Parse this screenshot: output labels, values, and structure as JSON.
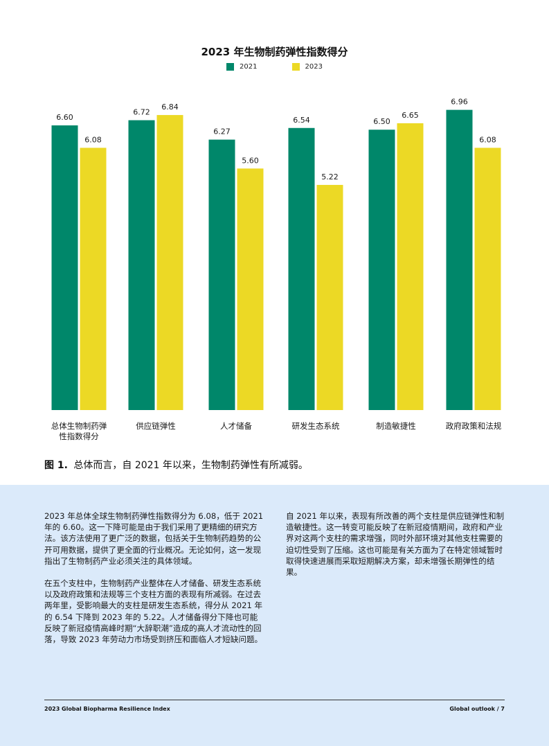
{
  "chart_data": {
    "type": "bar",
    "title": "2023 年生物制药弹性指数得分",
    "categories": [
      "总体生物制药弹性指数得分",
      "供应链弹性",
      "人才储备",
      "研发生态系统",
      "制造敏捷性",
      "政府政策和法规"
    ],
    "series": [
      {
        "name": "2021",
        "color": "#00876a",
        "values": [
          6.6,
          6.72,
          6.27,
          6.54,
          6.5,
          6.96
        ]
      },
      {
        "name": "2023",
        "color": "#ecd925",
        "values": [
          6.08,
          6.84,
          5.6,
          5.22,
          6.65,
          6.08
        ]
      }
    ],
    "ylim": [
      0,
      7.05
    ],
    "grid": false,
    "legend": "top-center",
    "xlabel": "",
    "ylabel": ""
  },
  "caption": {
    "figure": "图 1.",
    "text": "总体而言，自 2021 年以来，生物制药弹性有所减弱。"
  },
  "body": {
    "left": [
      "2023 年总体全球生物制药弹性指数得分为 6.08，低于 2021 年的 6.60。这一下降可能是由于我们采用了更精细的研究方法。该方法使用了更广泛的数据，包括关于生物制药趋势的公开可用数据，提供了更全面的行业概况。无论如何，这一发现指出了生物制药产业必须关注的具体领域。",
      "在五个支柱中，生物制药产业整体在人才储备、研发生态系统以及政府政策和法规等三个支柱方面的表现有所减弱。在过去两年里，受影响最大的支柱是研发生态系统，得分从 2021 年的 6.54 下降到 2023 年的 5.22。人才储备得分下降也可能反映了新冠疫情高峰时期“大辞职潮”造成的高人才流动性的回落，导致 2023 年劳动力市场受到挤压和面临人才短缺问题。"
    ],
    "right": [
      "自 2021 年以来，表现有所改善的两个支柱是供应链弹性和制造敏捷性。这一转变可能反映了在新冠疫情期间，政府和产业界对这两个支柱的需求增强，同时外部环境对其他支柱需要的迫切性受到了压缩。这也可能是有关方面为了在特定领域暂时取得快速进展而采取短期解决方案，却未增强长期弹性的结果。"
    ]
  },
  "footer": {
    "left": "2023 Global Biopharma Resilience Index",
    "right": "Global outlook / 7"
  }
}
